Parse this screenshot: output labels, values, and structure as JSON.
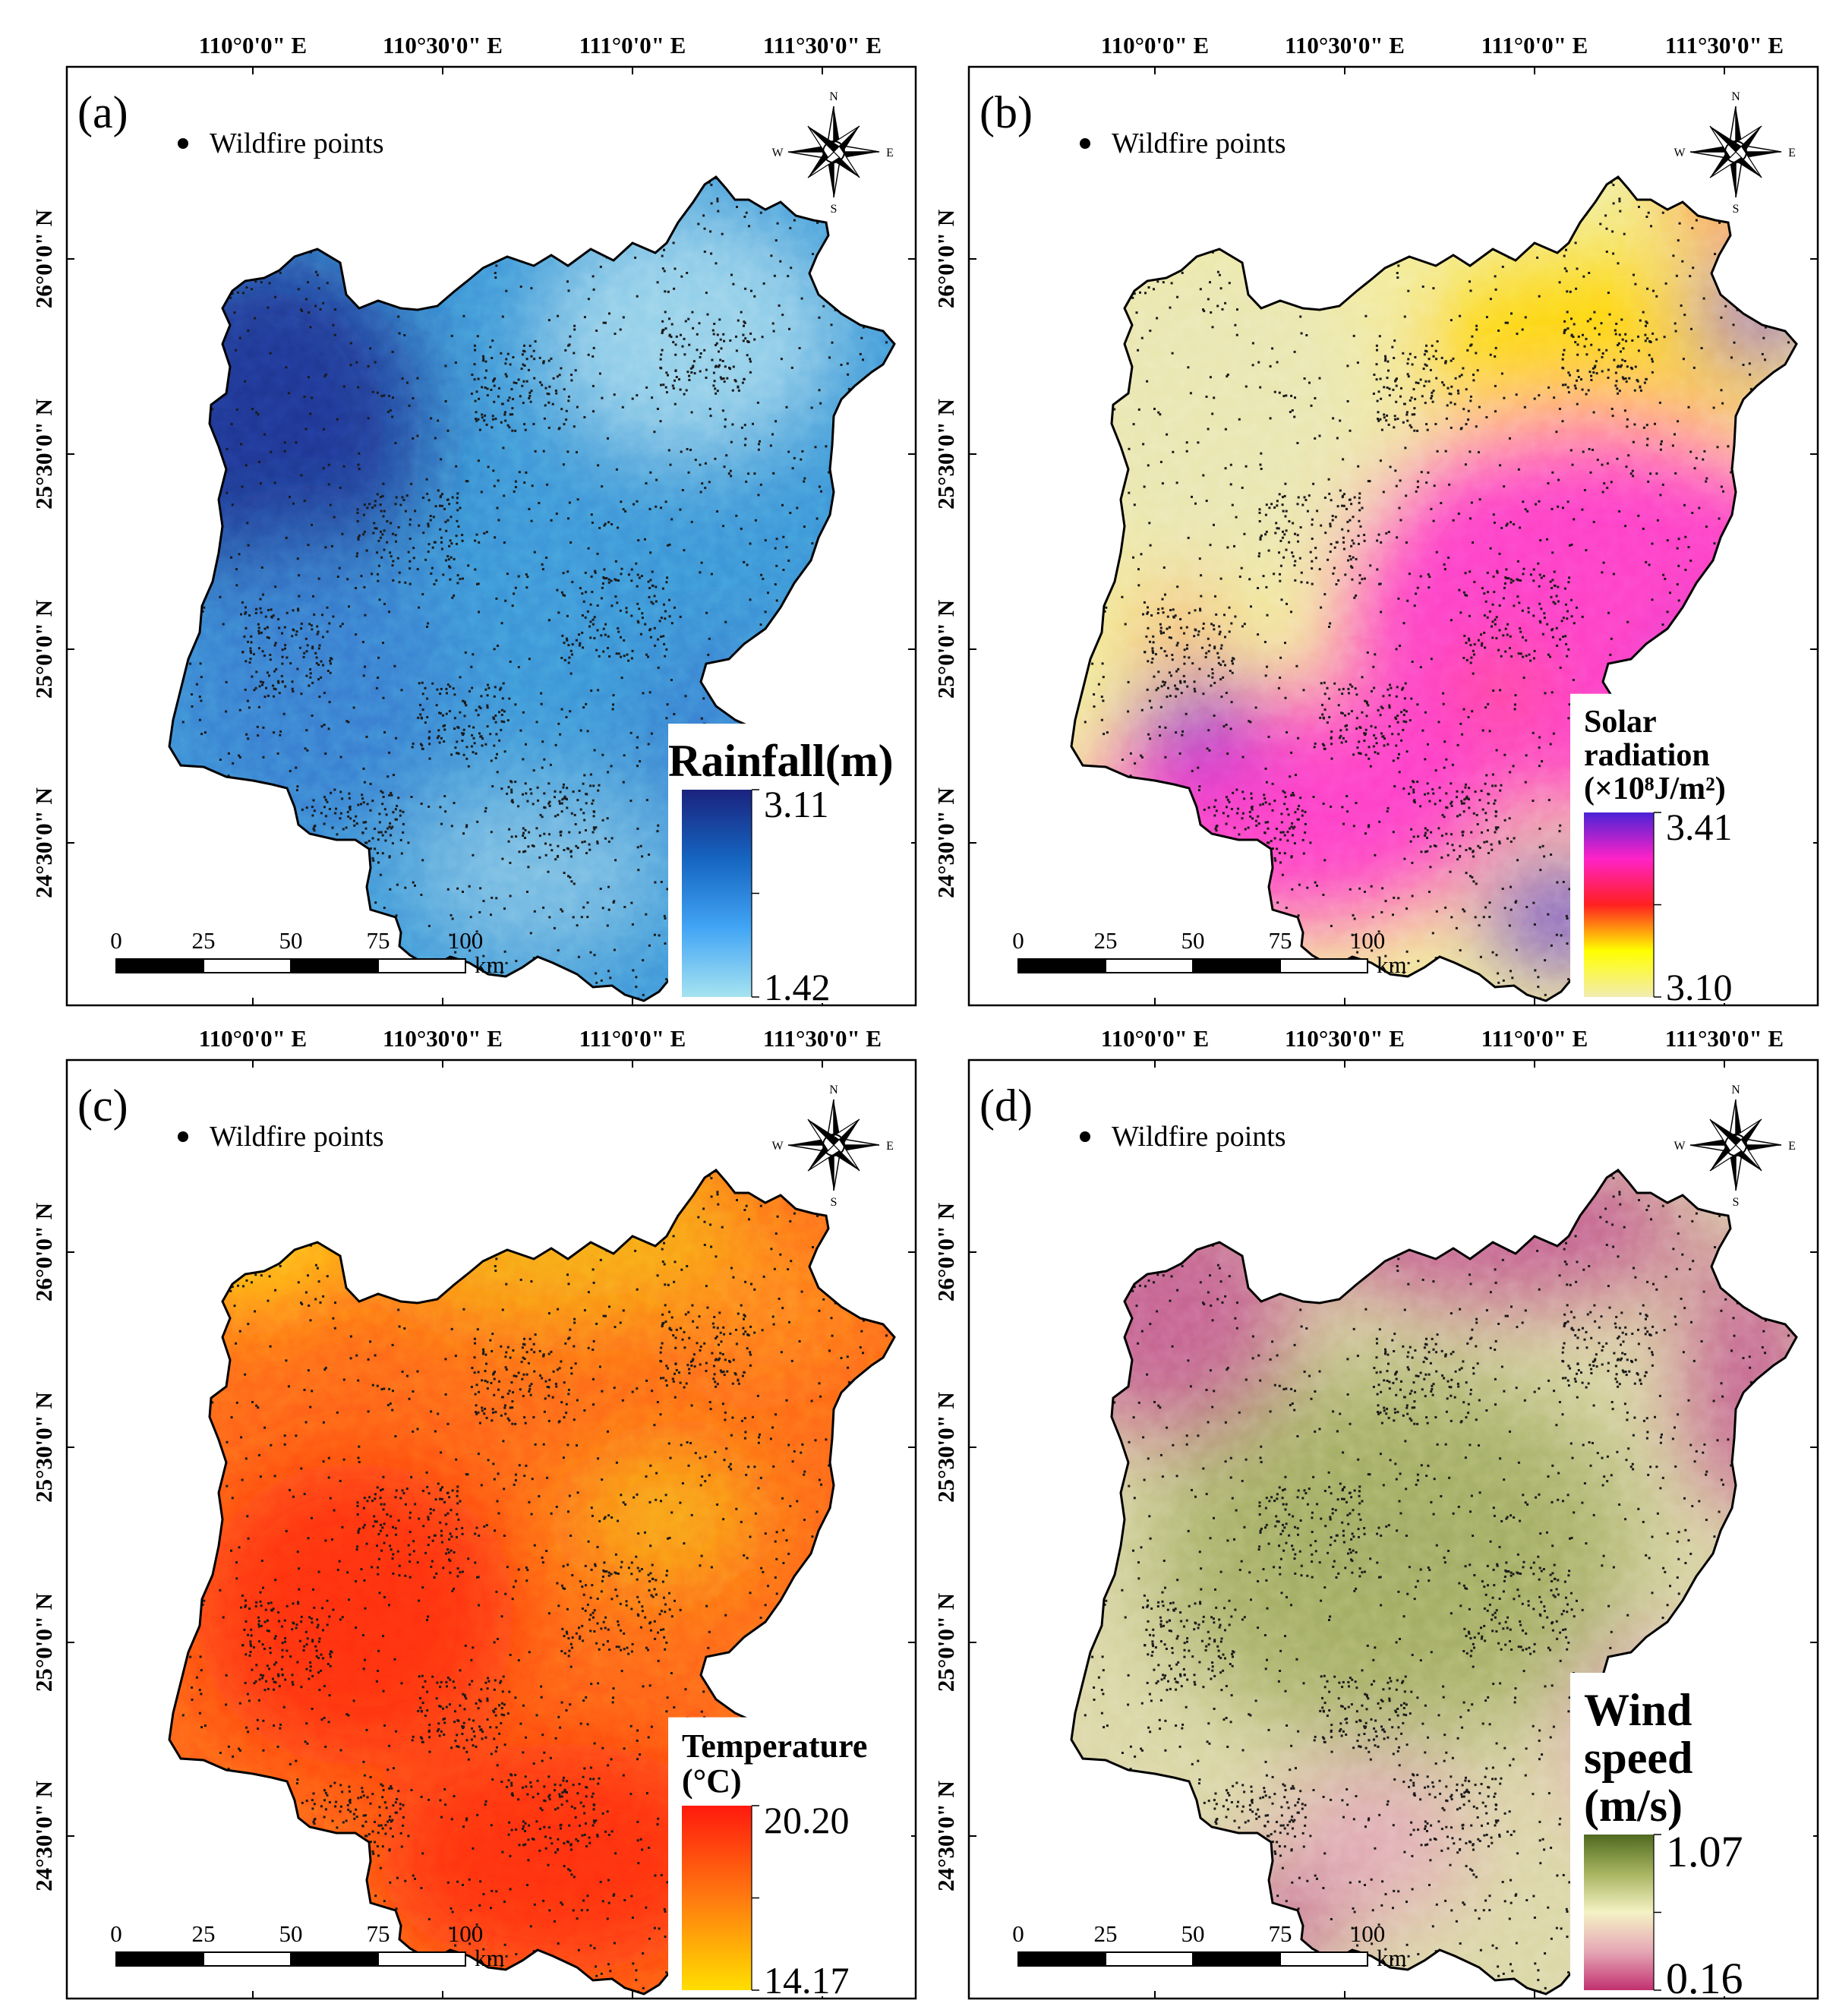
{
  "axes": {
    "lon_labels": [
      "110°0'0\" E",
      "110°30'0\" E",
      "111°0'0\" E",
      "111°30'0\" E"
    ],
    "lat_labels": [
      "26°0'0\" N",
      "25°30'0\" N",
      "25°0'0\" N",
      "24°30'0\" N"
    ]
  },
  "scalebar": {
    "ticks": [
      "0",
      "25",
      "50",
      "75",
      "100"
    ],
    "unit": "km"
  },
  "compass": {
    "n": "N",
    "s": "S",
    "e": "E",
    "w": "W"
  },
  "legend_point_label": "Wildfire points",
  "panels": [
    {
      "id": "a",
      "tag": "(a)",
      "variable": "Rainfall",
      "legend_lines": [
        "Rainfall(m)"
      ],
      "legend_max": "3.11",
      "legend_min": "1.42",
      "ramp": [
        "#1a237e",
        "#1565c0",
        "#42a5f5",
        "#a6e3f0"
      ],
      "surface": {
        "base": "#3f98d8",
        "hi": "#1f2f8f",
        "mid": "#3a7fd0",
        "lo": "#9ed6ec",
        "lo2": "#7fc0e4"
      }
    },
    {
      "id": "b",
      "tag": "(b)",
      "variable": "Solar radiation",
      "legend_lines": [
        "Solar",
        "radiation",
        "(×10⁸J/m²)"
      ],
      "legend_max": "3.41",
      "legend_min": "3.10",
      "ramp": [
        "#4a23d6",
        "#ff22c8",
        "#ff2020",
        "#ffff00",
        "#f2ecb0"
      ],
      "surface": {
        "base": "#f3ee9c",
        "hi": "#ff33cc",
        "mid": "#ffd200",
        "lo": "#e9e6b4",
        "lo2": "#6a3ad0"
      }
    },
    {
      "id": "c",
      "tag": "(c)",
      "variable": "Temperature",
      "legend_lines": [
        "Temperature",
        "(°C)"
      ],
      "legend_max": "20.20",
      "legend_min": "14.17",
      "ramp": [
        "#ff1a0d",
        "#ff7a10",
        "#ffde00"
      ],
      "surface": {
        "base": "#ff6a1a",
        "hi": "#ff2a12",
        "mid": "#ff8a1c",
        "lo": "#ffd21a",
        "lo2": "#f7b21a"
      }
    },
    {
      "id": "d",
      "tag": "(d)",
      "variable": "Wind speed",
      "legend_lines": [
        "Wind",
        "speed",
        "(m/s)"
      ],
      "legend_max": "1.07",
      "legend_min": "0.16",
      "ramp": [
        "#4f6a1f",
        "#a7b460",
        "#f4f2c4",
        "#e6a8b6",
        "#c2306f"
      ],
      "surface": {
        "base": "#dcd8a8",
        "hi": "#5d7426",
        "mid": "#a9b36a",
        "lo": "#c45c90",
        "lo2": "#e3aab8"
      }
    }
  ]
}
